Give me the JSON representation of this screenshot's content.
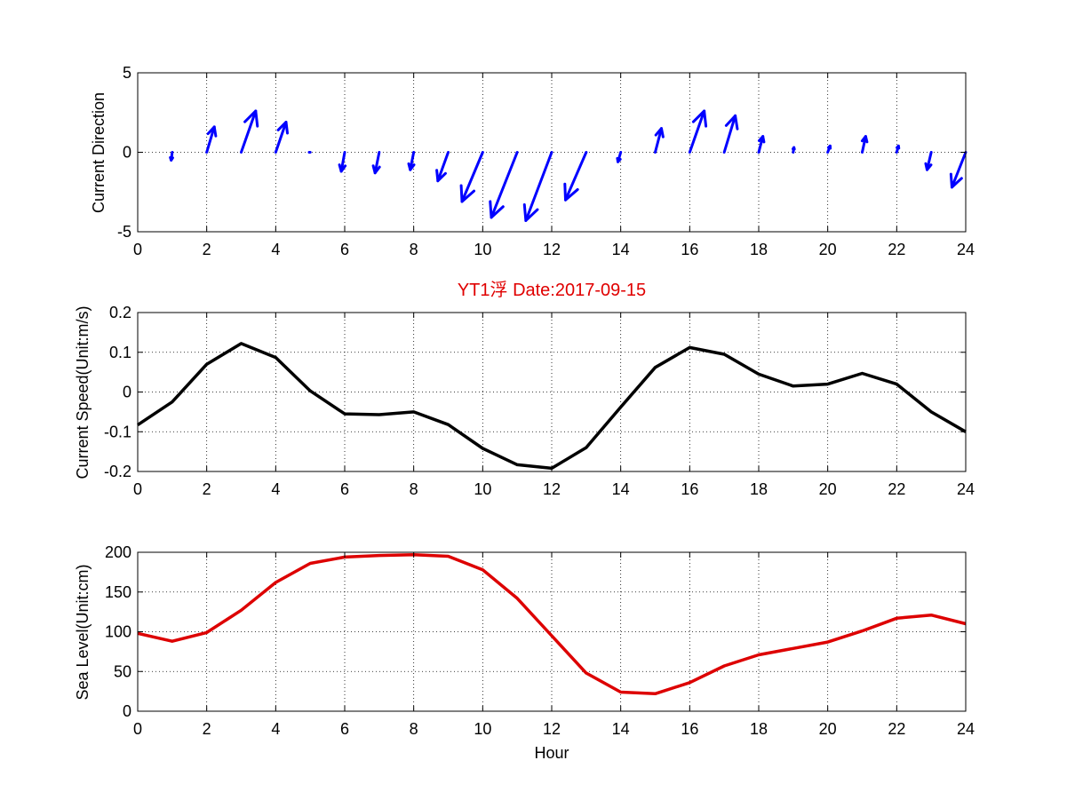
{
  "title": "YT1浮    Date:2017-09-15",
  "colors": {
    "title": "#e00000",
    "quiver": "#0000ff",
    "speed": "#000000",
    "level": "#dd0000",
    "grid": "#000000"
  },
  "chart_data": [
    {
      "type": "quiver",
      "ylabel": "Current Direction",
      "xlabel": "",
      "xlim": [
        0,
        24
      ],
      "ylim": [
        -5,
        5
      ],
      "xticks": [
        0,
        2,
        4,
        6,
        8,
        10,
        12,
        14,
        16,
        18,
        20,
        22,
        24
      ],
      "yticks": [
        -5,
        0,
        5
      ],
      "grid": true,
      "x": [
        1,
        2,
        3,
        4,
        5,
        6,
        7,
        8,
        9,
        10,
        11,
        12,
        13,
        14,
        15,
        16,
        17,
        18,
        19,
        20,
        21,
        22,
        23,
        24
      ],
      "u": [
        -0.03,
        0.22,
        0.42,
        0.3,
        -0.03,
        -0.1,
        -0.12,
        -0.1,
        -0.3,
        -0.6,
        -0.75,
        -0.75,
        -0.6,
        -0.08,
        0.18,
        0.42,
        0.32,
        0.12,
        0.02,
        0.07,
        0.1,
        0.05,
        -0.12,
        -0.4
      ],
      "v": [
        -0.5,
        1.6,
        2.6,
        1.9,
        0.0,
        -1.2,
        -1.3,
        -1.1,
        -1.8,
        -3.1,
        -4.1,
        -4.3,
        -3.0,
        -0.6,
        1.5,
        2.6,
        2.3,
        1.0,
        0.3,
        0.4,
        1.0,
        0.4,
        -1.1,
        -2.2
      ]
    },
    {
      "type": "line",
      "ylabel": "Current Speed(Unit:m/s)",
      "xlabel": "",
      "xlim": [
        0,
        24
      ],
      "ylim": [
        -0.2,
        0.2
      ],
      "xticks": [
        0,
        2,
        4,
        6,
        8,
        10,
        12,
        14,
        16,
        18,
        20,
        22,
        24
      ],
      "yticks": [
        -0.2,
        -0.1,
        0,
        0.1,
        0.2
      ],
      "grid": true,
      "x": [
        0,
        1,
        2,
        3,
        4,
        5,
        6,
        7,
        8,
        9,
        10,
        11,
        12,
        13,
        14,
        15,
        16,
        17,
        18,
        19,
        20,
        21,
        22,
        23,
        24
      ],
      "y": [
        -0.083,
        -0.025,
        0.07,
        0.122,
        0.087,
        0.003,
        -0.055,
        -0.057,
        -0.05,
        -0.082,
        -0.142,
        -0.183,
        -0.192,
        -0.14,
        -0.038,
        0.062,
        0.112,
        0.095,
        0.045,
        0.015,
        0.02,
        0.047,
        0.02,
        -0.05,
        -0.1
      ]
    },
    {
      "type": "line",
      "ylabel": "Sea Level(Unit:cm)",
      "xlabel": "Hour",
      "xlim": [
        0,
        24
      ],
      "ylim": [
        0,
        200
      ],
      "xticks": [
        0,
        2,
        4,
        6,
        8,
        10,
        12,
        14,
        16,
        18,
        20,
        22,
        24
      ],
      "yticks": [
        0,
        50,
        100,
        150,
        200
      ],
      "grid": true,
      "x": [
        0,
        1,
        2,
        3,
        4,
        5,
        6,
        7,
        8,
        9,
        10,
        11,
        12,
        13,
        14,
        15,
        16,
        17,
        18,
        19,
        20,
        21,
        22,
        23,
        24
      ],
      "y": [
        98,
        88,
        99,
        127,
        162,
        186,
        194,
        196,
        197,
        195,
        178,
        142,
        95,
        48,
        24,
        22,
        36,
        57,
        71,
        79,
        87,
        101,
        117,
        121,
        110
      ]
    }
  ]
}
